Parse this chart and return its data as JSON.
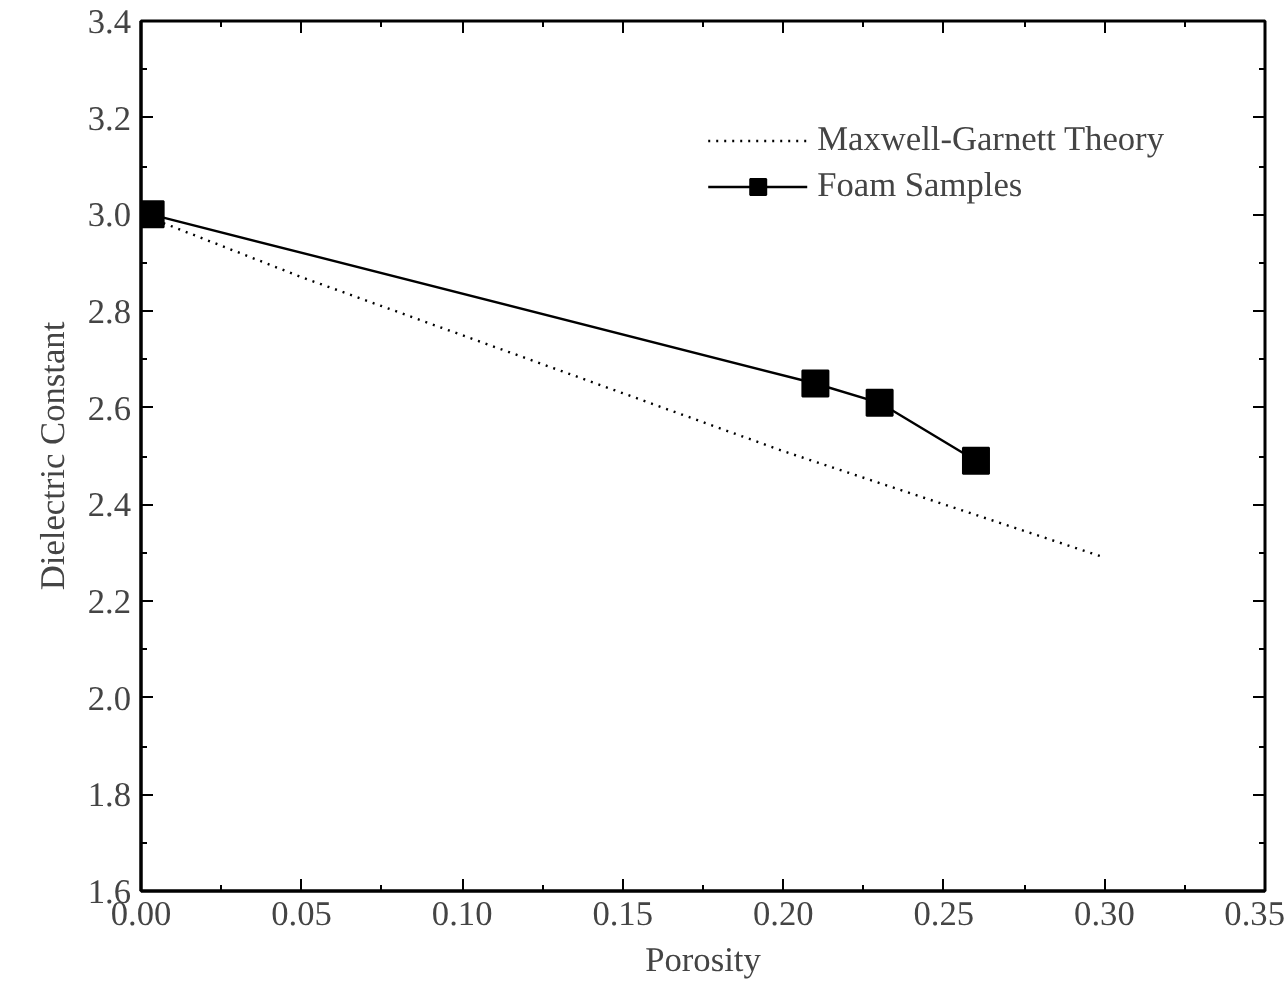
{
  "chart_data": {
    "type": "line",
    "xlabel": "Porosity",
    "ylabel": "Dielectric Constant",
    "xlim": [
      0.0,
      0.35
    ],
    "xticks": [
      {
        "value": 0,
        "label": "0.00"
      },
      {
        "value": 0.05,
        "label": "0.05"
      },
      {
        "value": 0.1,
        "label": "0.10"
      },
      {
        "value": 0.15,
        "label": "0.15"
      },
      {
        "value": 0.2,
        "label": "0.20"
      },
      {
        "value": 0.25,
        "label": "0.25"
      },
      {
        "value": 0.3,
        "label": "0.30"
      },
      {
        "value": 0.35,
        "label": "0.35"
      }
    ],
    "ylim": [
      1.6,
      3.4
    ],
    "yticks": [
      1.6,
      1.8,
      {
        "value": 2,
        "label": "2.0"
      },
      2.2,
      2.4,
      2.6,
      2.8,
      {
        "value": 3,
        "label": "3.0"
      },
      3.2,
      3.4
    ],
    "grid": false,
    "legend": "top right",
    "series": [
      {
        "name": "Maxwell-Garnett Theory",
        "color": "#000000",
        "line_style": "dotted",
        "marker": "none",
        "x": [
          0,
          0.05,
          0.1,
          0.15,
          0.2,
          0.25,
          0.3
        ],
        "values": [
          3.0,
          2.87,
          2.75,
          2.63,
          2.51,
          2.4,
          2.29
        ]
      },
      {
        "name": "Foam Samples",
        "color": "#000000",
        "line_style": "solid",
        "marker": "square",
        "x": [
          0.003,
          0.21,
          0.23,
          0.26
        ],
        "values": [
          3.0,
          2.65,
          2.61,
          2.49
        ]
      }
    ]
  }
}
